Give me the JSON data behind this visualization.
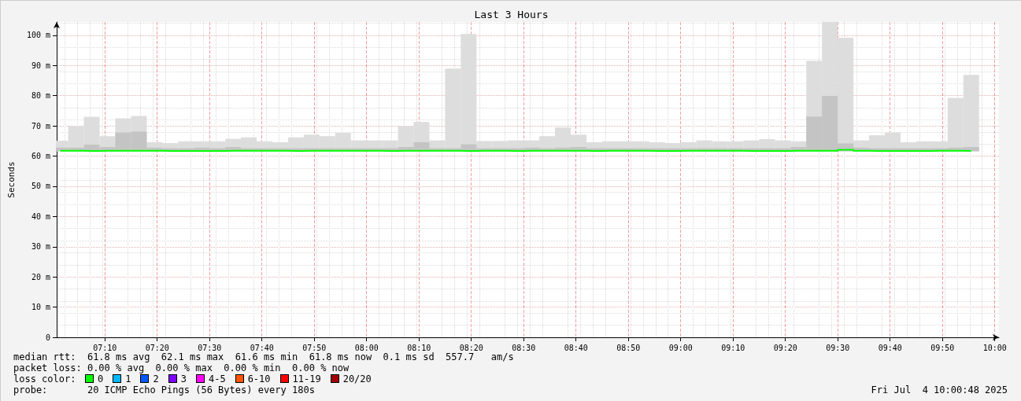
{
  "chart_data": {
    "type": "step",
    "title": "Last 3 Hours",
    "ylabel": "Seconds",
    "xlim": [
      7.01333,
      10.01333
    ],
    "xticks": [
      {
        "value": 7.16667,
        "label": "07:10"
      },
      {
        "value": 7.33333,
        "label": "07:20"
      },
      {
        "value": 7.5,
        "label": "07:30"
      },
      {
        "value": 7.66667,
        "label": "07:40"
      },
      {
        "value": 7.83333,
        "label": "07:50"
      },
      {
        "value": 8,
        "label": "08:00"
      },
      {
        "value": 8.16667,
        "label": "08:10"
      },
      {
        "value": 8.33333,
        "label": "08:20"
      },
      {
        "value": 8.5,
        "label": "08:30"
      },
      {
        "value": 8.66667,
        "label": "08:40"
      },
      {
        "value": 8.83333,
        "label": "08:50"
      },
      {
        "value": 9,
        "label": "09:00"
      },
      {
        "value": 9.16667,
        "label": "09:10"
      },
      {
        "value": 9.33333,
        "label": "09:20"
      },
      {
        "value": 9.5,
        "label": "09:30"
      },
      {
        "value": 9.66667,
        "label": "09:40"
      },
      {
        "value": 9.83333,
        "label": "09:50"
      },
      {
        "value": 10,
        "label": "10:00"
      }
    ],
    "ylim": [
      0,
      104.4
    ],
    "yticks": [
      0,
      {
        "value": 10,
        "label": "10 m"
      },
      {
        "value": 20,
        "label": "20 m"
      },
      {
        "value": 30,
        "label": "30 m"
      },
      {
        "value": 40,
        "label": "40 m"
      },
      {
        "value": 50,
        "label": "50 m"
      },
      {
        "value": 60,
        "label": "60 m"
      },
      {
        "value": 70,
        "label": "70 m"
      },
      {
        "value": 80,
        "label": "80 m"
      },
      {
        "value": 90,
        "label": "90 m"
      },
      {
        "value": 100,
        "label": "100 m"
      }
    ],
    "grid": true,
    "marker": "none",
    "line_style": "solid",
    "x": [
      7.025,
      7.075,
      7.125,
      7.175,
      7.225,
      7.275,
      7.325,
      7.375,
      7.425,
      7.475,
      7.525,
      7.575,
      7.625,
      7.675,
      7.725,
      7.775,
      7.825,
      7.875,
      7.925,
      7.975,
      8.025,
      8.075,
      8.125,
      8.175,
      8.225,
      8.275,
      8.325,
      8.375,
      8.425,
      8.475,
      8.525,
      8.575,
      8.625,
      8.675,
      8.725,
      8.775,
      8.825,
      8.875,
      8.925,
      8.975,
      9.025,
      9.075,
      9.125,
      9.175,
      9.225,
      9.275,
      9.325,
      9.375,
      9.425,
      9.475,
      9.525,
      9.575,
      9.625,
      9.675,
      9.725,
      9.775,
      9.825,
      9.875,
      9.925
    ],
    "series": [
      {
        "type": "bar",
        "color": "#dddddd",
        "base": [
          61.6,
          61.6,
          61.6,
          61.6,
          61.6,
          61.6,
          61.6,
          61.6,
          61.6,
          61.6,
          61.6,
          61.6,
          61.6,
          61.6,
          61.6,
          61.6,
          61.6,
          61.6,
          61.6,
          61.6,
          61.6,
          61.6,
          61.6,
          61.6,
          61.6,
          61.6,
          61.6,
          61.6,
          61.6,
          61.6,
          61.6,
          61.6,
          61.6,
          61.6,
          61.6,
          61.6,
          61.6,
          61.6,
          61.6,
          61.6,
          61.6,
          61.6,
          61.6,
          61.6,
          61.6,
          61.6,
          61.6,
          61.6,
          61.6,
          61.6,
          61.6,
          61.6,
          61.6,
          61.6,
          61.6,
          61.6,
          61.6,
          61.6,
          61.6
        ],
        "values": [
          3.5,
          8.3,
          11.4,
          5,
          10.9,
          11.7,
          3,
          2.7,
          3.3,
          3.3,
          3.3,
          4.1,
          4.6,
          3.3,
          3,
          4.6,
          5.5,
          5,
          6.1,
          3.6,
          3.6,
          3.6,
          8.3,
          9.7,
          3.6,
          27.4,
          38.8,
          3.4,
          3.4,
          3.6,
          3.6,
          5,
          7.9,
          5.5,
          3,
          3.3,
          3.3,
          3.3,
          3,
          2.7,
          3,
          3.6,
          3.3,
          3.3,
          3.6,
          4,
          3.6,
          3.3,
          30,
          42.8,
          37.6,
          3.6,
          5.3,
          6.2,
          3,
          3.3,
          3.3,
          17.7,
          25.3
        ]
      },
      {
        "type": "bar",
        "color": "#c4c4c4",
        "base": [
          61.6,
          61.6,
          61.6,
          61.6,
          61.6,
          61.6,
          61.6,
          61.6,
          61.6,
          61.6,
          61.6,
          61.6,
          61.6,
          61.6,
          61.6,
          61.6,
          61.6,
          61.6,
          61.6,
          61.6,
          61.6,
          61.6,
          61.6,
          61.6,
          61.6,
          61.6,
          61.6,
          61.6,
          61.6,
          61.6,
          61.6,
          61.6,
          61.6,
          61.6,
          61.6,
          61.6,
          61.6,
          61.6,
          61.6,
          61.6,
          61.6,
          61.6,
          61.6,
          61.6,
          61.6,
          61.6,
          61.6,
          61.6,
          61.6,
          61.6,
          61.6,
          61.6,
          61.6,
          61.6,
          61.6,
          61.6,
          61.6,
          61.6,
          61.6
        ],
        "values": [
          1.2,
          1.2,
          2.2,
          1.4,
          6.2,
          6.5,
          1.2,
          1,
          1,
          1.2,
          1,
          1.4,
          1,
          1,
          1,
          1,
          1,
          1,
          1,
          1,
          1,
          1,
          1.4,
          3,
          1,
          1,
          2.3,
          1,
          1,
          1,
          1.2,
          1,
          1.2,
          1.4,
          1,
          1,
          1,
          1,
          1,
          1,
          1,
          1,
          1,
          1,
          1,
          1,
          1,
          1.4,
          11.5,
          18.3,
          2.6,
          1.2,
          1,
          1,
          1,
          1,
          1,
          1.2,
          1.4
        ]
      },
      {
        "color": "#00ff00",
        "values": [
          61.8,
          61.8,
          61.7,
          61.8,
          61.8,
          61.8,
          61.8,
          61.7,
          61.7,
          61.7,
          61.7,
          61.8,
          61.8,
          61.8,
          61.8,
          61.7,
          61.8,
          61.8,
          61.8,
          61.8,
          61.8,
          61.7,
          61.8,
          61.8,
          61.8,
          61.8,
          61.7,
          61.8,
          61.8,
          61.7,
          61.8,
          61.8,
          61.8,
          61.8,
          61.7,
          61.8,
          61.8,
          61.8,
          61.7,
          61.7,
          61.8,
          61.8,
          61.8,
          61.8,
          61.7,
          61.7,
          61.7,
          61.8,
          61.8,
          61.8,
          62.1,
          61.8,
          61.7,
          61.7,
          61.7,
          61.7,
          61.8,
          61.8,
          61.7
        ]
      }
    ],
    "annotations": [
      "median rtt:  61.8 ms avg  62.1 ms max  61.6 ms min  61.8 ms now  0.1 ms sd  557.7   am/s",
      "packet loss: 0.00 % avg  0.00 % max  0.00 % min  0.00 % now",
      "loss color:",
      "0",
      "1",
      "2",
      "3",
      "4-5",
      "6-10",
      "11-19",
      "20/20",
      "probe:       20 ICMP Echo Pings (56 Bytes) every 180s",
      "Fri Jul  4 10:00:48 2025"
    ]
  }
}
